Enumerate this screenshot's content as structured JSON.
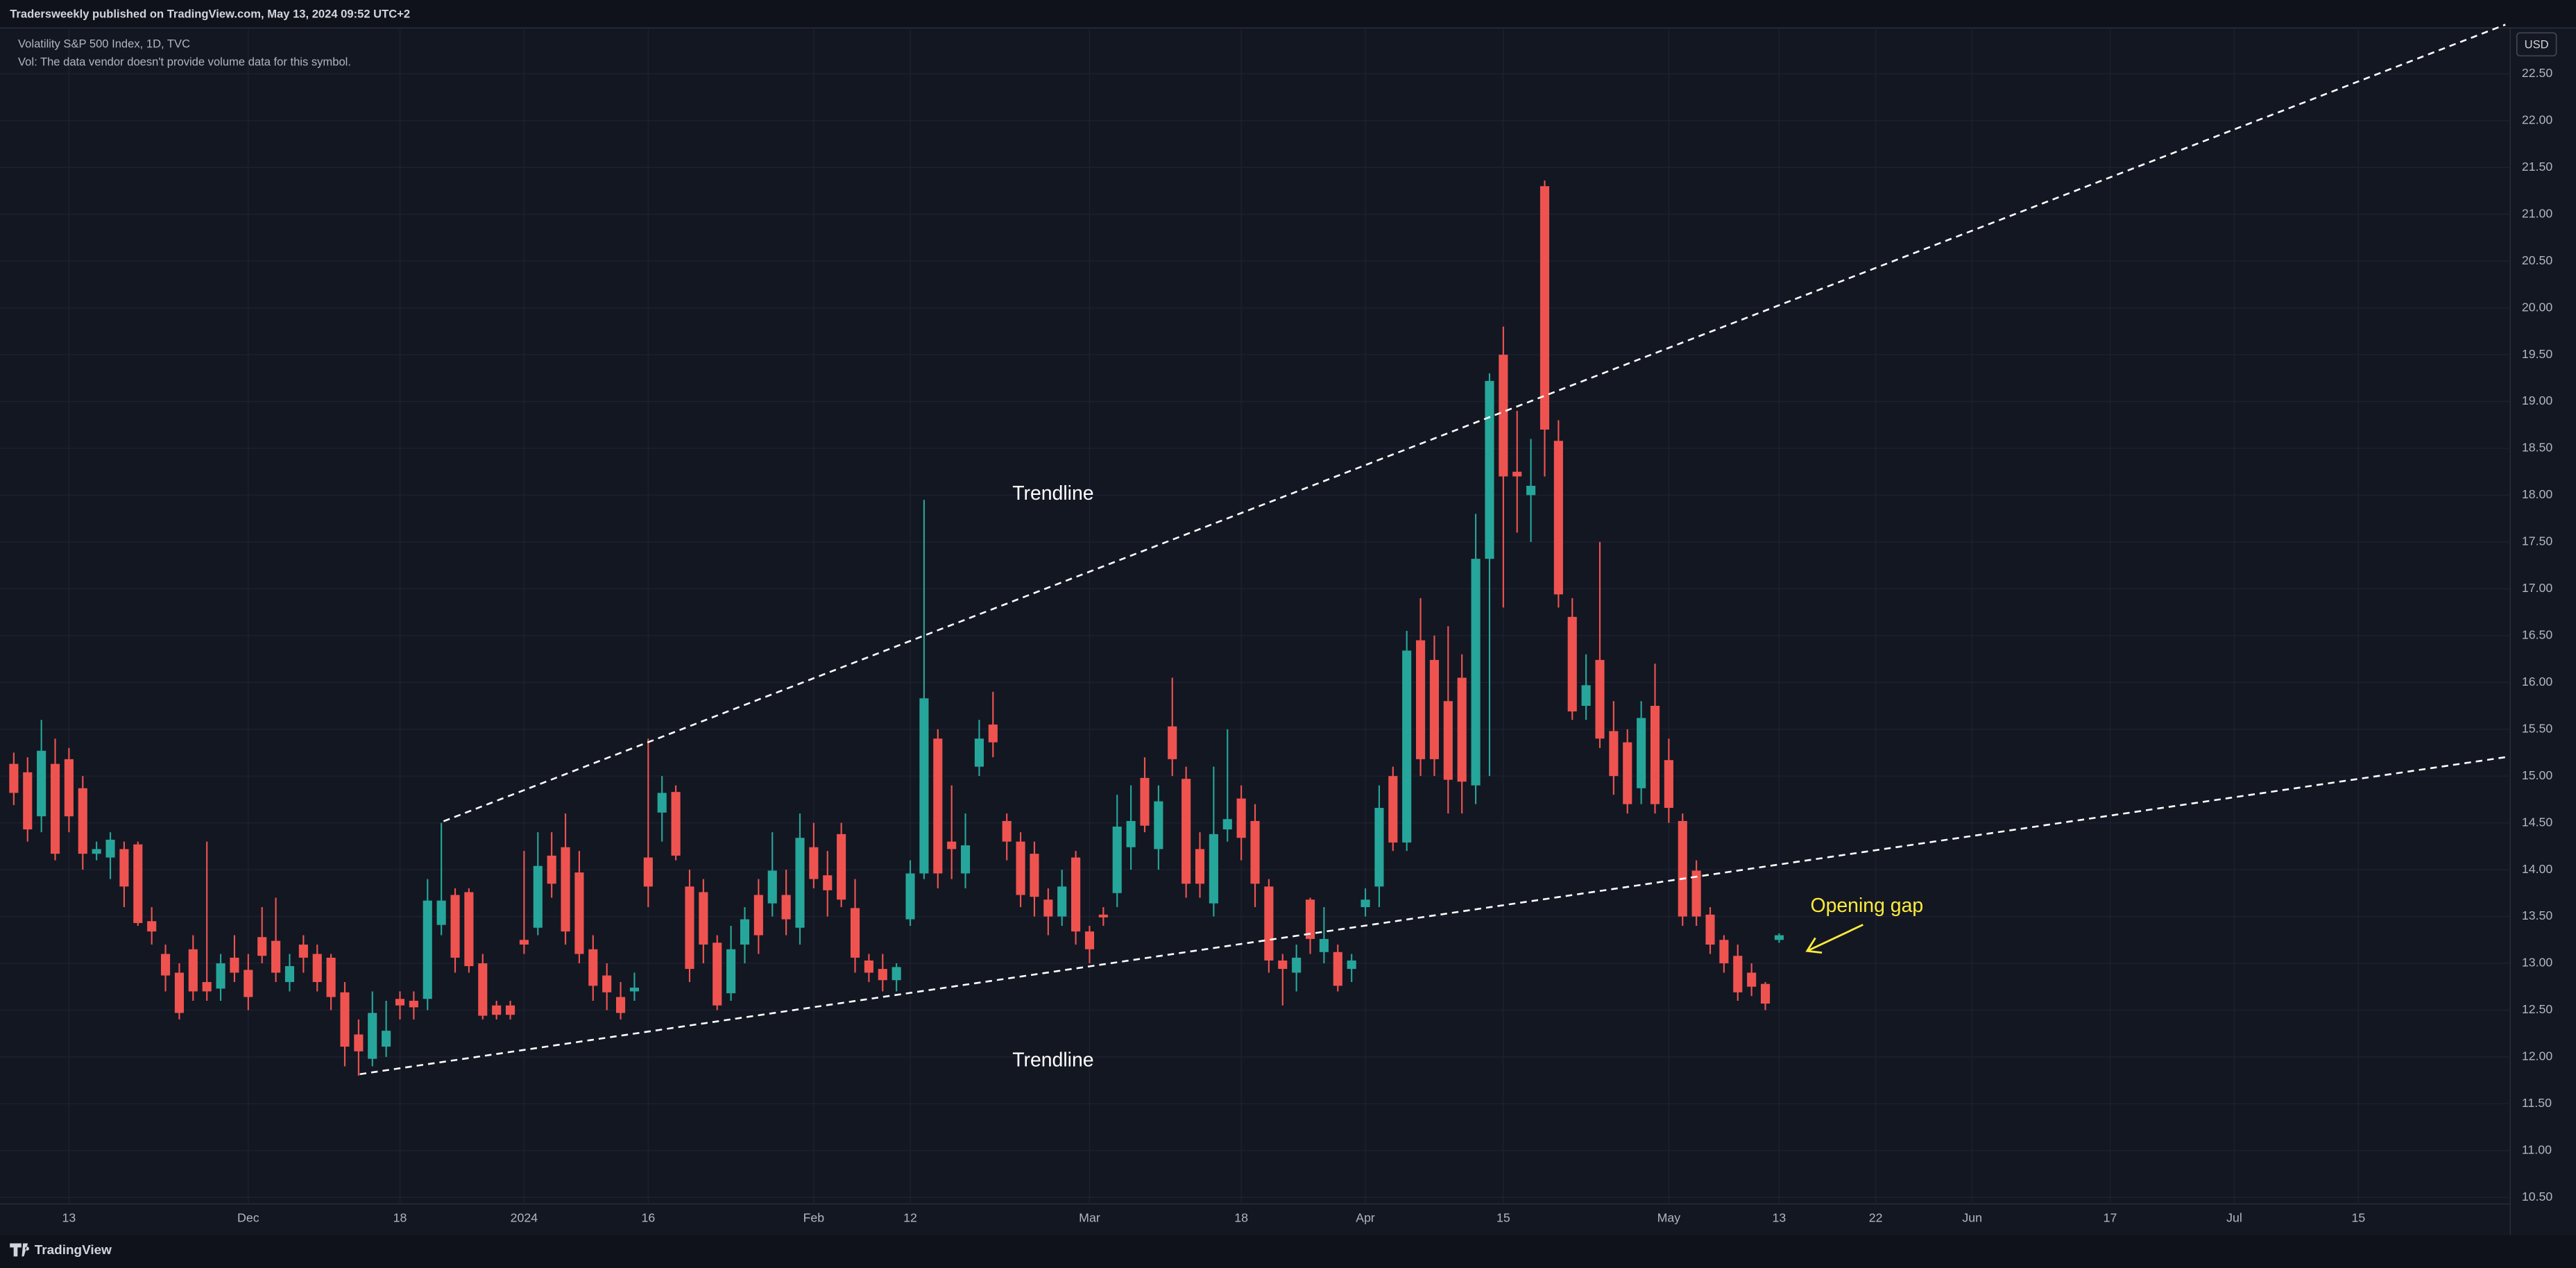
{
  "header": {
    "publisher": "Tradersweekly published on TradingView.com, May 13, 2024 09:52 UTC+2",
    "symbol": "Volatility S&P 500 Index, 1D, TVC",
    "volume_note": "Vol: The data vendor doesn't provide volume data for this symbol."
  },
  "footer": {
    "brand": "TradingView"
  },
  "chart_data": {
    "type": "candlestick",
    "currency": "USD",
    "annotations": [
      "Trendline",
      "Trendline",
      "Opening gap"
    ],
    "colors": {
      "up": "#26a69a",
      "down": "#ef5350"
    },
    "grid": true,
    "ylim": [
      10.43,
      22.99
    ],
    "yticks": [
      {
        "value": 10.5,
        "label": "10.50"
      },
      {
        "value": 11,
        "label": "11.00"
      },
      {
        "value": 11.5,
        "label": "11.50"
      },
      {
        "value": 12,
        "label": "12.00"
      },
      {
        "value": 12.5,
        "label": "12.50"
      },
      {
        "value": 13,
        "label": "13.00"
      },
      {
        "value": 13.5,
        "label": "13.50"
      },
      {
        "value": 14,
        "label": "14.00"
      },
      {
        "value": 14.5,
        "label": "14.50"
      },
      {
        "value": 15,
        "label": "15.00"
      },
      {
        "value": 15.5,
        "label": "15.50"
      },
      {
        "value": 16,
        "label": "16.00"
      },
      {
        "value": 16.5,
        "label": "16.50"
      },
      {
        "value": 17,
        "label": "17.00"
      },
      {
        "value": 17.5,
        "label": "17.50"
      },
      {
        "value": 18,
        "label": "18.00"
      },
      {
        "value": 18.5,
        "label": "18.50"
      },
      {
        "value": 19,
        "label": "19.00"
      },
      {
        "value": 19.5,
        "label": "19.50"
      },
      {
        "value": 20,
        "label": "20.00"
      },
      {
        "value": 20.5,
        "label": "20.50"
      },
      {
        "value": 21,
        "label": "21.00"
      },
      {
        "value": 21.5,
        "label": "21.50"
      },
      {
        "value": 22,
        "label": "22.00"
      },
      {
        "value": 22.5,
        "label": "22.50"
      }
    ],
    "categories": [
      null,
      null,
      null,
      null,
      "13",
      null,
      null,
      null,
      null,
      null,
      null,
      null,
      null,
      null,
      null,
      null,
      null,
      "Dec",
      null,
      null,
      null,
      null,
      null,
      null,
      null,
      null,
      null,
      null,
      "18",
      null,
      null,
      null,
      null,
      null,
      null,
      null,
      null,
      "2024",
      null,
      null,
      null,
      null,
      null,
      null,
      null,
      null,
      "16",
      null,
      null,
      null,
      null,
      null,
      null,
      null,
      null,
      null,
      null,
      null,
      "Feb",
      null,
      null,
      null,
      null,
      null,
      null,
      "12",
      null,
      null,
      null,
      null,
      null,
      null,
      null,
      null,
      null,
      null,
      null,
      null,
      "Mar",
      null,
      null,
      null,
      null,
      null,
      null,
      null,
      null,
      null,
      null,
      "18",
      null,
      null,
      null,
      null,
      null,
      null,
      null,
      null,
      "Apr",
      null,
      null,
      null,
      null,
      null,
      null,
      null,
      null,
      null,
      "15",
      null,
      null,
      null,
      null,
      null,
      null,
      null,
      null,
      null,
      null,
      null,
      "May",
      null,
      null,
      null,
      null,
      null,
      null,
      null,
      "13",
      null,
      null,
      null,
      null,
      null,
      null,
      "22",
      null,
      null,
      null,
      null,
      null,
      null,
      "Jun",
      null,
      null,
      null,
      null,
      null,
      null,
      null,
      null,
      null,
      "17",
      null,
      null,
      null,
      null,
      null,
      null,
      null,
      null,
      "Jul",
      null,
      null,
      null,
      null,
      null,
      null,
      null,
      null,
      "15",
      null,
      null,
      null,
      null,
      null,
      null,
      null,
      null,
      null,
      null
    ],
    "open": [
      15.13,
      15.04,
      14.57,
      15.13,
      15.18,
      14.87,
      14.17,
      14.13,
      14.22,
      14.27,
      13.45,
      13.1,
      12.9,
      13.15,
      12.8,
      12.73,
      13.06,
      12.93,
      13.28,
      13.24,
      12.8,
      13.2,
      13.1,
      13.06,
      12.69,
      12.24,
      11.98,
      12.11,
      12.62,
      12.6,
      12.62,
      13.41,
      13.73,
      13.76,
      13.0,
      12.55,
      12.55,
      13.25,
      13.38,
      14.15,
      14.24,
      13.97,
      13.15,
      12.87,
      12.64,
      12.7,
      14.13,
      14.61,
      14.83,
      13.82,
      13.76,
      13.22,
      12.68,
      13.2,
      13.73,
      13.64,
      13.73,
      13.38,
      14.24,
      13.94,
      14.38,
      13.59,
      13.03,
      12.94,
      12.82,
      13.47,
      13.96,
      15.4,
      14.3,
      13.96,
      15.1,
      15.55,
      14.52,
      14.3,
      14.17,
      13.68,
      13.5,
      14.13,
      13.34,
      13.52,
      13.75,
      14.24,
      14.98,
      14.22,
      15.53,
      14.97,
      14.22,
      13.64,
      14.43,
      14.76,
      14.52,
      13.82,
      13.03,
      12.9,
      13.68,
      13.12,
      13.12,
      12.94,
      13.6,
      13.82,
      15.0,
      14.29,
      16.45,
      16.24,
      15.8,
      16.05,
      14.9,
      17.32,
      19.5,
      18.25,
      18.0,
      21.3,
      18.58,
      16.7,
      15.75,
      16.24,
      15.48,
      15.36,
      14.87,
      15.75,
      15.17,
      14.52,
      13.99,
      13.52,
      13.25,
      13.08,
      12.9,
      12.78,
      13.25,
      null,
      null,
      null,
      null,
      null,
      null,
      null,
      null,
      null,
      null,
      null,
      null,
      null,
      null,
      null,
      null,
      null,
      null,
      null,
      null,
      null,
      null,
      null,
      null,
      null,
      null,
      null,
      null,
      null,
      null,
      null,
      null,
      null,
      null,
      null,
      null,
      null,
      null,
      null,
      null,
      null,
      null,
      null,
      null,
      null,
      null,
      null,
      null,
      null,
      null,
      null,
      null
    ],
    "high": [
      15.25,
      15.2,
      15.6,
      15.4,
      15.3,
      15.0,
      14.3,
      14.4,
      14.3,
      14.3,
      13.6,
      13.2,
      13.0,
      13.3,
      14.3,
      13.1,
      13.3,
      13.1,
      13.6,
      13.7,
      13.1,
      13.3,
      13.2,
      13.1,
      12.8,
      12.4,
      12.7,
      12.6,
      12.7,
      12.7,
      13.9,
      14.5,
      13.8,
      13.8,
      13.1,
      12.6,
      12.6,
      14.2,
      14.4,
      14.4,
      14.6,
      14.2,
      13.3,
      13.0,
      12.8,
      12.9,
      15.4,
      15.0,
      14.9,
      14.0,
      13.9,
      13.3,
      13.4,
      13.6,
      13.9,
      14.4,
      14.0,
      14.6,
      14.5,
      14.2,
      14.5,
      13.9,
      13.1,
      13.1,
      13.0,
      14.1,
      17.95,
      15.5,
      14.9,
      14.6,
      15.6,
      15.9,
      14.6,
      14.4,
      14.3,
      13.8,
      14.0,
      14.2,
      13.4,
      13.6,
      14.8,
      14.9,
      15.2,
      14.9,
      16.05,
      15.1,
      14.4,
      15.1,
      15.5,
      14.9,
      14.7,
      13.9,
      13.1,
      13.2,
      13.7,
      13.6,
      13.2,
      13.1,
      13.8,
      14.9,
      15.1,
      16.55,
      16.9,
      16.5,
      16.6,
      16.3,
      17.8,
      19.3,
      19.8,
      18.9,
      18.6,
      21.36,
      18.8,
      16.9,
      16.3,
      17.5,
      15.8,
      15.5,
      15.8,
      16.2,
      15.4,
      14.6,
      14.1,
      13.6,
      13.3,
      13.2,
      13.0,
      12.8,
      13.32,
      null,
      null,
      null,
      null,
      null,
      null,
      null,
      null,
      null,
      null,
      null,
      null,
      null,
      null,
      null,
      null,
      null,
      null,
      null,
      null,
      null,
      null,
      null,
      null,
      null,
      null,
      null,
      null,
      null,
      null,
      null,
      null,
      null,
      null,
      null,
      null,
      null,
      null,
      null,
      null,
      null,
      null,
      null,
      null,
      null,
      null,
      null,
      null,
      null,
      null,
      null,
      null
    ],
    "low": [
      14.69,
      14.3,
      14.4,
      14.1,
      14.4,
      14.0,
      14.1,
      13.9,
      13.6,
      13.4,
      13.2,
      12.7,
      12.4,
      12.6,
      12.6,
      12.6,
      12.8,
      12.5,
      13.0,
      12.8,
      12.7,
      12.9,
      12.7,
      12.5,
      11.9,
      11.8,
      11.9,
      12.0,
      12.4,
      12.4,
      12.5,
      13.3,
      12.9,
      12.9,
      12.4,
      12.4,
      12.4,
      13.1,
      13.3,
      13.7,
      13.2,
      13.0,
      12.6,
      12.5,
      12.4,
      12.6,
      13.6,
      14.3,
      14.1,
      12.8,
      13.0,
      12.5,
      12.6,
      13.0,
      13.1,
      13.5,
      13.3,
      13.2,
      13.8,
      13.5,
      13.6,
      12.9,
      12.8,
      12.7,
      12.7,
      13.4,
      13.9,
      13.8,
      13.9,
      13.8,
      15.0,
      15.2,
      14.1,
      13.6,
      13.5,
      13.3,
      13.4,
      13.2,
      13.0,
      13.4,
      13.6,
      14.0,
      14.4,
      14.0,
      15.0,
      13.7,
      13.7,
      13.5,
      14.3,
      14.1,
      13.6,
      12.9,
      12.55,
      12.7,
      13.1,
      13.0,
      12.7,
      12.8,
      13.5,
      13.6,
      14.2,
      14.2,
      15.0,
      15.0,
      14.6,
      14.6,
      14.7,
      15.0,
      16.8,
      17.6,
      17.5,
      18.2,
      16.8,
      15.6,
      15.6,
      15.3,
      14.8,
      14.6,
      14.7,
      14.6,
      14.5,
      13.4,
      13.4,
      13.1,
      12.9,
      12.6,
      12.65,
      12.5,
      13.22,
      null,
      null,
      null,
      null,
      null,
      null,
      null,
      null,
      null,
      null,
      null,
      null,
      null,
      null,
      null,
      null,
      null,
      null,
      null,
      null,
      null,
      null,
      null,
      null,
      null,
      null,
      null,
      null,
      null,
      null,
      null,
      null,
      null,
      null,
      null,
      null,
      null,
      null,
      null,
      null,
      null,
      null,
      null,
      null,
      null,
      null,
      null,
      null,
      null,
      null,
      null,
      null
    ],
    "close": [
      14.82,
      14.43,
      15.27,
      14.17,
      14.57,
      14.17,
      14.22,
      14.32,
      13.82,
      13.43,
      13.34,
      12.87,
      12.47,
      12.7,
      12.7,
      13.0,
      12.9,
      12.64,
      13.08,
      12.9,
      12.97,
      13.06,
      12.8,
      12.64,
      12.11,
      12.06,
      12.47,
      12.28,
      12.55,
      12.53,
      13.67,
      13.67,
      13.06,
      12.97,
      12.44,
      12.45,
      12.45,
      13.2,
      14.04,
      13.85,
      13.34,
      13.1,
      12.76,
      12.69,
      12.47,
      12.74,
      13.82,
      14.82,
      14.15,
      12.94,
      13.2,
      12.55,
      13.15,
      13.47,
      13.3,
      13.99,
      13.47,
      14.34,
      13.9,
      13.78,
      13.68,
      13.06,
      12.9,
      12.82,
      12.96,
      13.96,
      15.83,
      13.96,
      14.22,
      14.26,
      15.4,
      15.36,
      14.3,
      13.73,
      13.71,
      13.5,
      13.82,
      13.34,
      13.15,
      13.49,
      14.46,
      14.52,
      14.47,
      14.73,
      15.18,
      13.85,
      13.85,
      14.38,
      14.54,
      14.34,
      13.85,
      13.03,
      12.94,
      13.06,
      13.26,
      13.26,
      12.76,
      13.03,
      13.68,
      14.66,
      14.29,
      16.34,
      15.18,
      15.18,
      14.96,
      14.94,
      17.32,
      19.22,
      18.2,
      18.2,
      18.1,
      18.7,
      16.94,
      15.69,
      15.97,
      15.4,
      15.0,
      14.7,
      15.62,
      14.7,
      14.66,
      13.5,
      13.5,
      13.2,
      13.0,
      12.69,
      12.75,
      12.57,
      13.3,
      null,
      null,
      null,
      null,
      null,
      null,
      null,
      null,
      null,
      null,
      null,
      null,
      null,
      null,
      null,
      null,
      null,
      null,
      null,
      null,
      null,
      null,
      null,
      null,
      null,
      null,
      null,
      null,
      null,
      null,
      null,
      null,
      null,
      null,
      null,
      null,
      null,
      null,
      null,
      null,
      null,
      null,
      null,
      null,
      null,
      null,
      null,
      null,
      null,
      null,
      null,
      null
    ]
  }
}
